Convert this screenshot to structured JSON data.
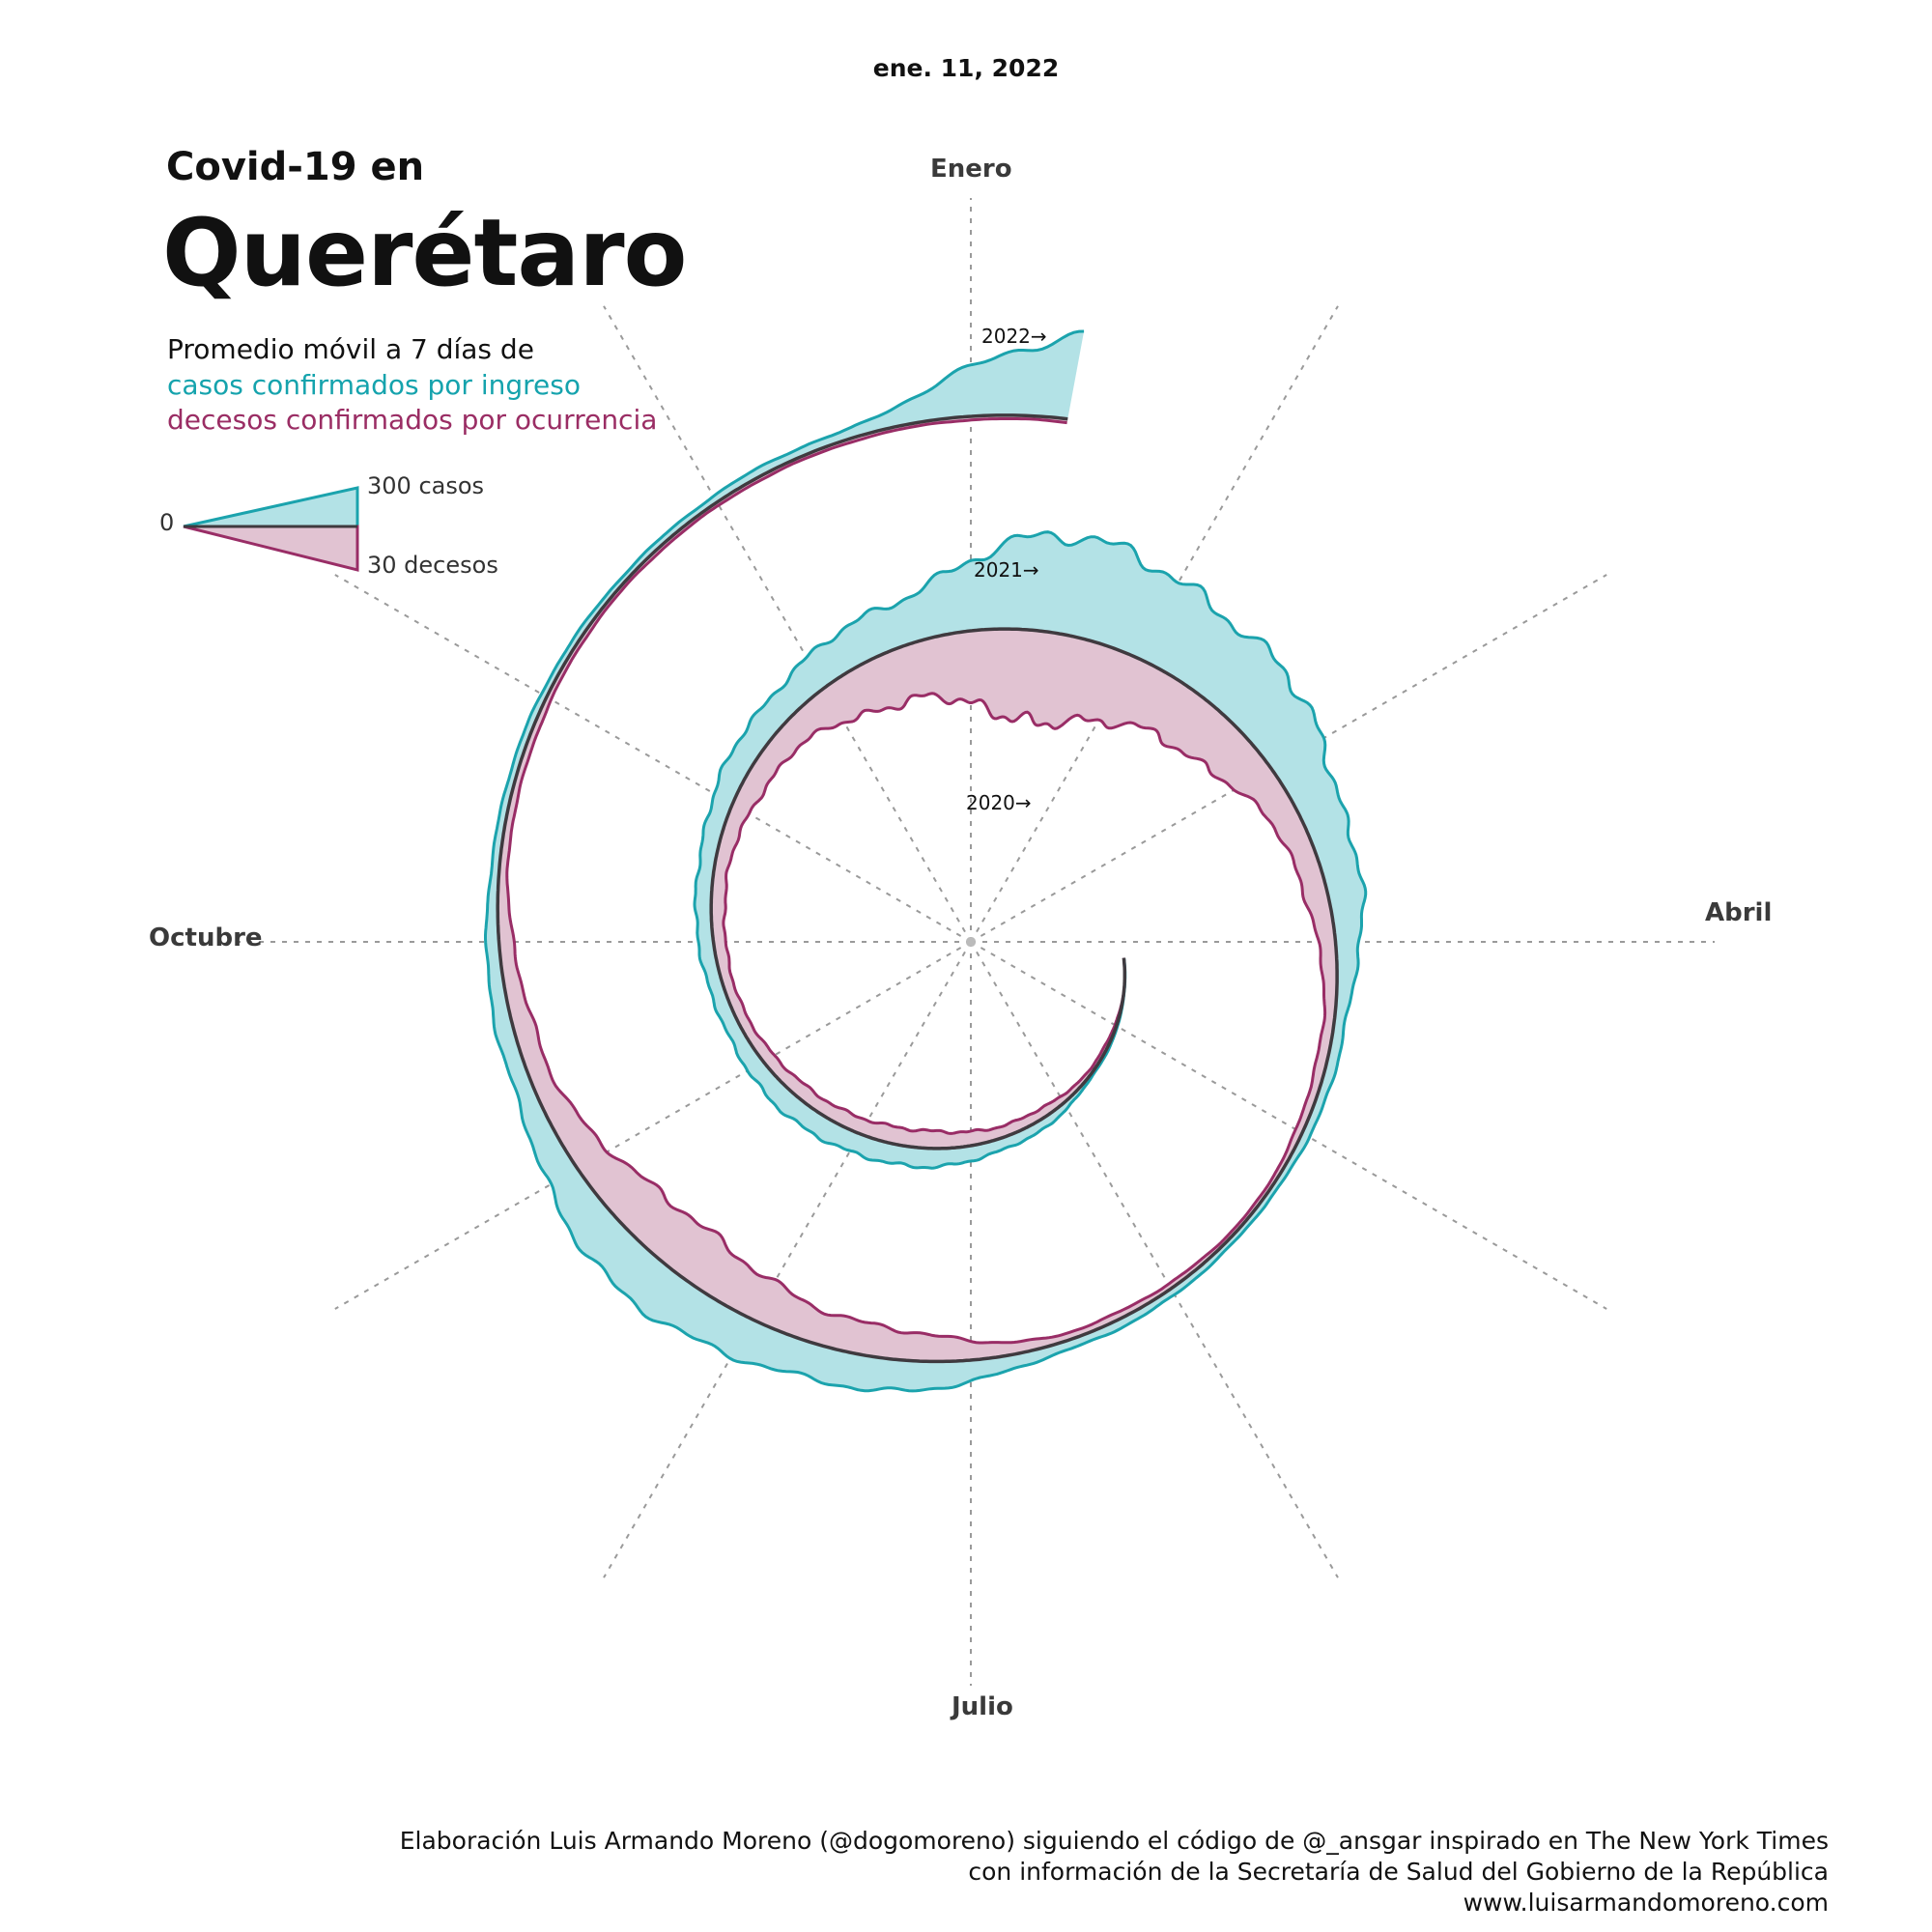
{
  "date_label": "ene. 11, 2022",
  "title": {
    "line1": "Covid-19 en",
    "line2": "Querétaro"
  },
  "subtitle": {
    "line1": "Promedio móvil a 7 días de",
    "cases_label": "casos confirmados por ingreso",
    "deaths_label": "decesos confirmados por ocurrencia"
  },
  "legend": {
    "zero": "0",
    "cases": "300 casos",
    "deaths": "30 decesos"
  },
  "months": {
    "jan": "Enero",
    "apr": "Abril",
    "jul": "Julio",
    "oct": "Octubre"
  },
  "years": {
    "y2020": "2020→",
    "y2021": "2021→",
    "y2022": "2022→"
  },
  "credits": {
    "line1": "Elaboración Luis Armando Moreno (@dogomoreno) siguiendo el código de @_ansgar inspirado en The New York Times",
    "line2": "con información de la Secretaría de Salud del Gobierno de la República",
    "line3": "www.luisarmandomoreno.com"
  },
  "colors": {
    "cases_line": "#1ba3ad",
    "cases_fill": "#b3e2e6",
    "deaths_line": "#992d66",
    "deaths_fill": "#e1c3d2",
    "spiral": "#3f3a3f",
    "grid": "#9a9a9a"
  },
  "chart_data": {
    "type": "area",
    "layout": "spiral (one turn per year, clockwise, January at top)",
    "period": [
      "2020",
      "2021",
      "2022"
    ],
    "last_date": "ene. 11, 2022",
    "scale": {
      "cases_ref": 300,
      "deaths_ref": 30
    },
    "series": [
      {
        "name": "casos confirmados por ingreso",
        "unit": "casos (promedio móvil 7 días)",
        "monthly_values": {
          "2020": [
            0,
            0,
            0,
            1,
            6,
            30,
            55,
            60,
            40,
            45,
            75,
            120
          ],
          "2021": [
            280,
            215,
            110,
            30,
            15,
            25,
            95,
            140,
            50,
            20,
            15,
            25
          ],
          "2022": [
            250
          ]
        }
      },
      {
        "name": "decesos confirmados por ocurrencia",
        "unit": "decesos (promedio móvil 7 días)",
        "monthly_values": {
          "2020": [
            0,
            0,
            0,
            0,
            1,
            3,
            5,
            4,
            3,
            4,
            7,
            15
          ],
          "2021": [
            26,
            16,
            7,
            3,
            1,
            2,
            9,
            15,
            6,
            2,
            1,
            1
          ],
          "2022": [
            1
          ]
        }
      }
    ]
  }
}
